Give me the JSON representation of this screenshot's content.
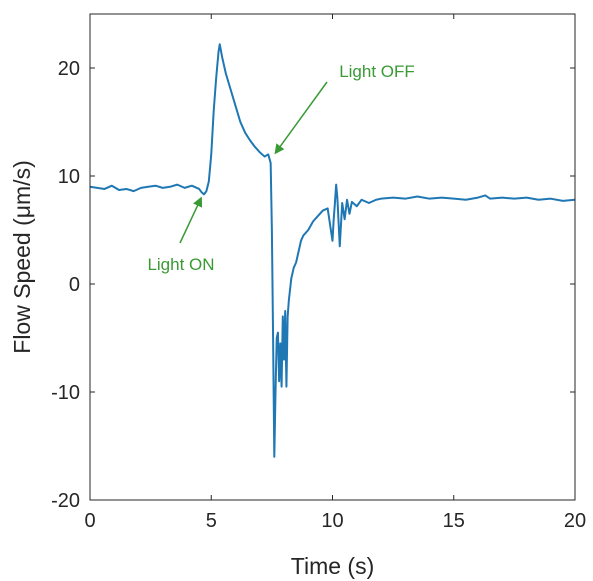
{
  "chart_data": {
    "type": "line",
    "xlabel": "Time (s)",
    "ylabel": "Flow Speed (μm/s)",
    "xlim": [
      0,
      20
    ],
    "ylim": [
      -20,
      25
    ],
    "xticks": [
      0,
      5,
      10,
      15,
      20
    ],
    "yticks": [
      -20,
      -10,
      0,
      10,
      20
    ],
    "xtick_labels": [
      "0",
      "5",
      "10",
      "15",
      "20"
    ],
    "ytick_labels": [
      "-20",
      "-10",
      "0",
      "10",
      "20"
    ],
    "grid": false,
    "line_color": "#1f77b4",
    "annotation_color": "#3a9a35",
    "series": [
      {
        "x": [
          0,
          0.3,
          0.6,
          0.9,
          1.2,
          1.5,
          1.8,
          2.1,
          2.4,
          2.7,
          3.0,
          3.3,
          3.6,
          3.9,
          4.2,
          4.5,
          4.6,
          4.7,
          4.8,
          4.9,
          5.0,
          5.1,
          5.2,
          5.3,
          5.35,
          5.45,
          5.6,
          5.8,
          6.0,
          6.2,
          6.4,
          6.6,
          6.8,
          7.0,
          7.2,
          7.35,
          7.45,
          7.5,
          7.55,
          7.6,
          7.65,
          7.7,
          7.75,
          7.8,
          7.85,
          7.9,
          7.95,
          8.0,
          8.05,
          8.1,
          8.15,
          8.2,
          8.3,
          8.4,
          8.5,
          8.6,
          8.7,
          8.8,
          9.0,
          9.2,
          9.4,
          9.6,
          9.8,
          9.9,
          10.0,
          10.05,
          10.1,
          10.15,
          10.2,
          10.3,
          10.4,
          10.5,
          10.6,
          10.7,
          10.8,
          11.0,
          11.2,
          11.5,
          11.8,
          12.0,
          12.5,
          13.0,
          13.5,
          14.0,
          14.5,
          15.0,
          15.5,
          16.0,
          16.3,
          16.5,
          17.0,
          17.5,
          18.0,
          18.5,
          19.0,
          19.5,
          20.0
        ],
        "y": [
          9.0,
          8.9,
          8.8,
          9.1,
          8.7,
          8.8,
          8.6,
          8.9,
          9.0,
          9.1,
          8.9,
          9.0,
          9.2,
          8.9,
          9.1,
          8.8,
          8.5,
          8.3,
          8.6,
          9.5,
          12.0,
          16.0,
          19.0,
          21.5,
          22.2,
          21.0,
          19.5,
          18.0,
          16.5,
          15.0,
          14.0,
          13.3,
          12.7,
          12.2,
          11.8,
          12.0,
          11.2,
          5.0,
          -5.0,
          -16.0,
          -10.0,
          -5.0,
          -4.5,
          -9.0,
          -5.5,
          -9.5,
          -3.0,
          -7.0,
          -2.5,
          -9.5,
          -3.0,
          -1.5,
          0.5,
          1.5,
          2.0,
          3.0,
          4.0,
          4.5,
          5.0,
          5.8,
          6.3,
          6.8,
          7.0,
          5.5,
          4.0,
          6.0,
          7.5,
          9.2,
          8.0,
          3.5,
          7.5,
          6.0,
          7.8,
          6.5,
          7.6,
          7.2,
          7.8,
          7.5,
          7.8,
          7.9,
          8.0,
          7.9,
          8.1,
          7.9,
          8.0,
          7.9,
          7.8,
          8.0,
          8.2,
          7.9,
          8.0,
          7.9,
          8.0,
          7.8,
          7.9,
          7.7,
          7.8
        ]
      }
    ],
    "annotations": [
      {
        "text": "Light ON",
        "point_to": [
          4.7,
          8.3
        ]
      },
      {
        "text": "Light OFF",
        "point_to": [
          7.45,
          11.6
        ]
      }
    ]
  }
}
